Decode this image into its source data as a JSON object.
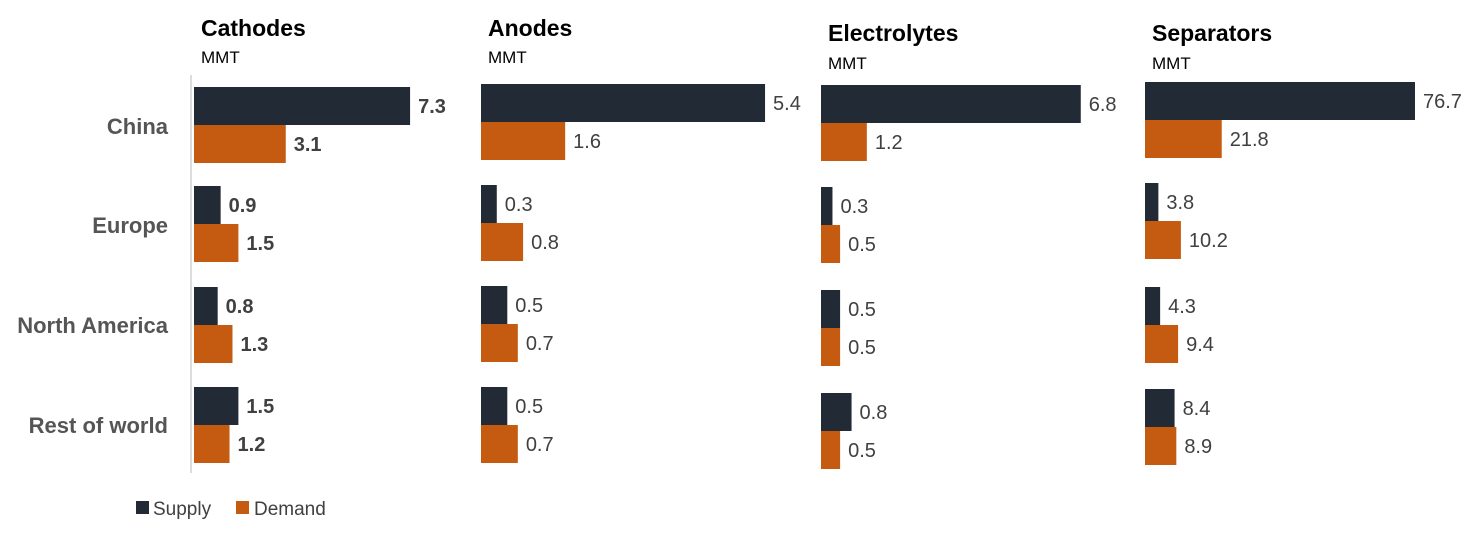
{
  "chart_data": {
    "type": "bar",
    "orientation": "horizontal",
    "categories": [
      "China",
      "Europe",
      "North America",
      "Rest of world"
    ],
    "legend": [
      "Supply",
      "Demand"
    ],
    "colors": {
      "Supply": "#222a35",
      "Demand": "#c55a11"
    },
    "panels": [
      {
        "title": "Cathodes",
        "unit": "MMT",
        "bold_labels": true,
        "series": [
          {
            "name": "Supply",
            "values": [
              7.3,
              0.9,
              0.8,
              1.5
            ]
          },
          {
            "name": "Demand",
            "values": [
              3.1,
              1.5,
              1.3,
              1.2
            ]
          }
        ]
      },
      {
        "title": "Anodes",
        "unit": "MMT",
        "bold_labels": false,
        "series": [
          {
            "name": "Supply",
            "values": [
              5.4,
              0.3,
              0.5,
              0.5
            ]
          },
          {
            "name": "Demand",
            "values": [
              1.6,
              0.8,
              0.7,
              0.7
            ]
          }
        ]
      },
      {
        "title": "Electrolytes",
        "unit": "MMT",
        "bold_labels": false,
        "series": [
          {
            "name": "Supply",
            "values": [
              6.8,
              0.3,
              0.5,
              0.8
            ]
          },
          {
            "name": "Demand",
            "values": [
              1.2,
              0.5,
              0.5,
              0.5
            ]
          }
        ]
      },
      {
        "title": "Separators",
        "unit": "MMT",
        "bold_labels": false,
        "series": [
          {
            "name": "Supply",
            "values": [
              76.7,
              3.8,
              4.3,
              8.4
            ]
          },
          {
            "name": "Demand",
            "values": [
              21.8,
              10.2,
              9.4,
              8.9
            ]
          }
        ]
      }
    ]
  }
}
